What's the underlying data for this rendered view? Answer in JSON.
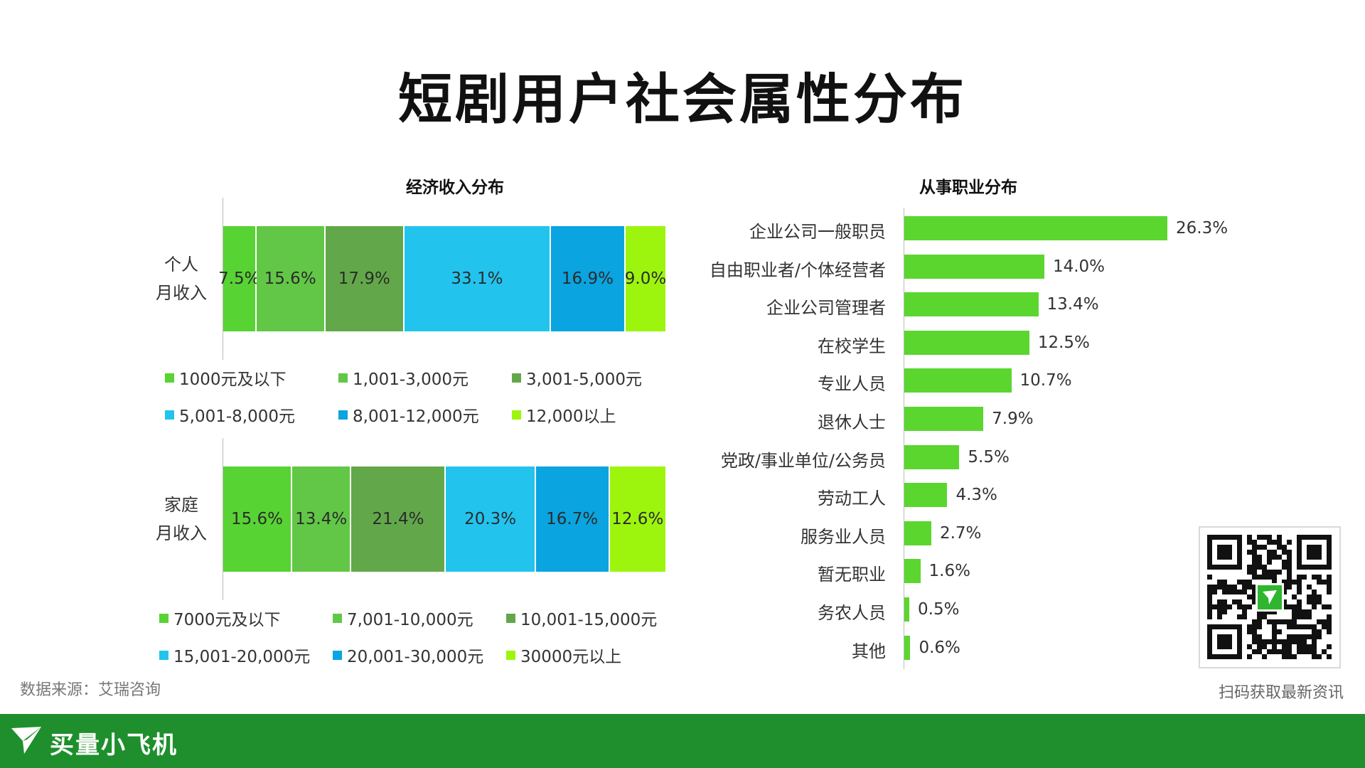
{
  "title": "短剧用户社会属性分布",
  "source": "数据来源：艾瑞咨询",
  "qr_caption": "扫码获取最新资讯",
  "brand": "买量小飞机",
  "colors": {
    "accent_green": "#5bd62f",
    "footer_green": "#1e8f2c",
    "income_colors": [
      "#58d334",
      "#62c746",
      "#62a84a",
      "#22c4ee",
      "#0aa4e0",
      "#9df50e"
    ]
  },
  "chart_data": [
    {
      "type": "bar",
      "subtype": "stacked-100",
      "title": "经济收入分布",
      "rows": [
        {
          "label": "个人\n月收入",
          "segments": [
            {
              "name": "1000元及以下",
              "value": 7.5,
              "label": "7.5%"
            },
            {
              "name": "1,001-3,000元",
              "value": 15.6,
              "label": "15.6%"
            },
            {
              "name": "3,001-5,000元",
              "value": 17.9,
              "label": "17.9%"
            },
            {
              "name": "5,001-8,000元",
              "value": 33.1,
              "label": "33.1%"
            },
            {
              "name": "8,001-12,000元",
              "value": 16.9,
              "label": "16.9%"
            },
            {
              "name": "12,000以上",
              "value": 9.0,
              "label": "9.0%"
            }
          ]
        },
        {
          "label": "家庭\n月收入",
          "segments": [
            {
              "name": "7000元及以下",
              "value": 15.6,
              "label": "15.6%"
            },
            {
              "name": "7,001-10,000元",
              "value": 13.4,
              "label": "13.4%"
            },
            {
              "name": "10,001-15,000元",
              "value": 21.4,
              "label": "21.4%"
            },
            {
              "name": "15,001-20,000元",
              "value": 20.3,
              "label": "20.3%"
            },
            {
              "name": "20,001-30,000元",
              "value": 16.7,
              "label": "16.7%"
            },
            {
              "name": "30000元以上",
              "value": 12.6,
              "label": "12.6%"
            }
          ]
        }
      ],
      "legend_placement": "below each bar"
    },
    {
      "type": "bar",
      "orientation": "horizontal",
      "title": "从事职业分布",
      "categories": [
        "企业公司一般职员",
        "自由职业者/个体经营者",
        "企业公司管理者",
        "在校学生",
        "专业人员",
        "退休人士",
        "党政/事业单位/公务员",
        "劳动工人",
        "服务业人员",
        "暂无职业",
        "务农人员",
        "其他"
      ],
      "values": [
        26.3,
        14.0,
        13.4,
        12.5,
        10.7,
        7.9,
        5.5,
        4.3,
        2.7,
        1.6,
        0.5,
        0.6
      ],
      "value_labels": [
        "26.3%",
        "14.0%",
        "13.4%",
        "12.5%",
        "10.7%",
        "7.9%",
        "5.5%",
        "4.3%",
        "2.7%",
        "1.6%",
        "0.5%",
        "0.6%"
      ],
      "xlim": [
        0,
        26.3
      ],
      "grid": false
    }
  ]
}
